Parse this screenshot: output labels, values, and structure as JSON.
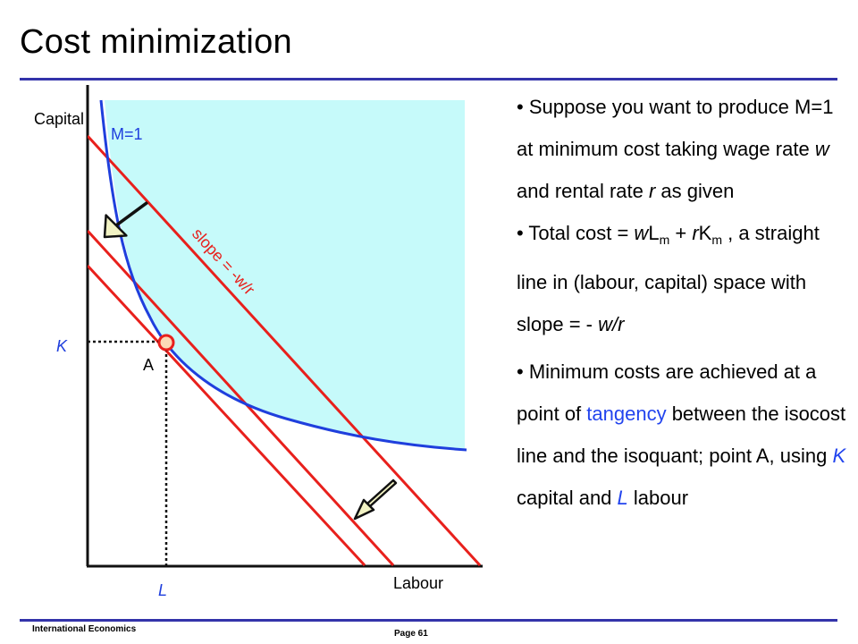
{
  "slide": {
    "title": "Cost minimization",
    "footer_left": "International Economics",
    "page_label": "Page 61"
  },
  "diagram": {
    "y_axis_label": "Capital",
    "x_axis_label": "Labour",
    "isoquant_label": "M=1",
    "isocost_label": "slope = -w/r",
    "point_label": "A",
    "k_label": "K",
    "l_label": "L",
    "colors": {
      "region_fill": "#c6fafa",
      "isoquant": "#1f3fdd",
      "isocost": "#e8201c",
      "arrow_fill": "#f2f3c4",
      "point_fill": "#fcd9b5"
    }
  },
  "bullets": [
    {
      "prefix": "• Suppose you want to produce M=1 at minimum cost taking wage rate ",
      "w": "w",
      "mid": " and rental rate ",
      "r": "r",
      "suffix": " as given"
    },
    {
      "p1": "• Total cost = ",
      "w": "w",
      "L": "L",
      "sub1": "m",
      "plus": " + ",
      "r": "r",
      "K": "K",
      "sub2": "m",
      "p2": " , a straight line in (labour, capital) space with slope = - ",
      "slope": "w/r"
    },
    {
      "p1": "• Minimum costs are achieved at a point of ",
      "tangency": "tangency",
      "p2": " between the isocost line and the isoquant; point A, using ",
      "K": "K",
      "p3": " capital and ",
      "L": "L",
      "p4": " labour"
    }
  ]
}
